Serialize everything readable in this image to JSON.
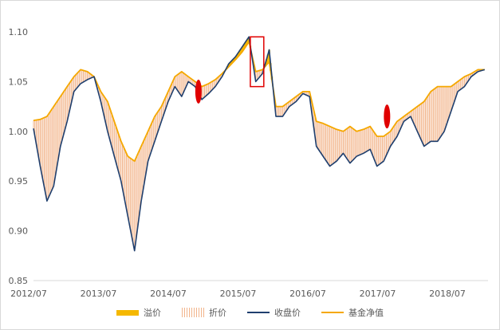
{
  "chart_data": {
    "type": "line",
    "title": "",
    "xlabel": "",
    "ylabel": "",
    "ylim": [
      0.85,
      1.1
    ],
    "yticks": [
      "0.85",
      "0.90",
      "0.95",
      "1.00",
      "1.05",
      "1.10"
    ],
    "xticks": [
      "2012/07",
      "2013/07",
      "2014/07",
      "2015/07",
      "2016/07",
      "2017/07",
      "2018/07"
    ],
    "xrange": [
      2012.5,
      2019.25
    ],
    "x": [
      2012.5,
      2012.6,
      2012.7,
      2012.8,
      2012.9,
      2013.0,
      2013.1,
      2013.2,
      2013.3,
      2013.4,
      2013.5,
      2013.6,
      2013.7,
      2013.8,
      2013.9,
      2014.0,
      2014.1,
      2014.2,
      2014.3,
      2014.4,
      2014.5,
      2014.6,
      2014.7,
      2014.8,
      2014.9,
      2015.0,
      2015.1,
      2015.2,
      2015.3,
      2015.4,
      2015.5,
      2015.6,
      2015.7,
      2015.8,
      2015.9,
      2016.0,
      2016.1,
      2016.2,
      2016.3,
      2016.4,
      2016.5,
      2016.6,
      2016.7,
      2016.8,
      2016.9,
      2017.0,
      2017.1,
      2017.2,
      2017.3,
      2017.4,
      2017.5,
      2017.6,
      2017.7,
      2017.8,
      2017.9,
      2018.0,
      2018.1,
      2018.2,
      2018.3,
      2018.4,
      2018.5,
      2018.6,
      2018.7,
      2018.8,
      2018.9,
      2019.0,
      2019.1,
      2019.2
    ],
    "series": [
      {
        "name": "收盘价",
        "color": "#1f3f6e",
        "values": [
          1.003,
          0.965,
          0.93,
          0.945,
          0.985,
          1.01,
          1.04,
          1.048,
          1.052,
          1.055,
          1.03,
          1.0,
          0.975,
          0.95,
          0.915,
          0.88,
          0.93,
          0.97,
          0.99,
          1.01,
          1.03,
          1.045,
          1.035,
          1.05,
          1.045,
          1.032,
          1.038,
          1.045,
          1.055,
          1.068,
          1.075,
          1.085,
          1.095,
          1.05,
          1.058,
          1.082,
          1.015,
          1.015,
          1.025,
          1.03,
          1.038,
          1.035,
          0.985,
          0.975,
          0.965,
          0.97,
          0.978,
          0.968,
          0.975,
          0.978,
          0.982,
          0.965,
          0.97,
          0.985,
          0.995,
          1.01,
          1.015,
          1.0,
          0.985,
          0.99,
          0.99,
          1.0,
          1.02,
          1.04,
          1.045,
          1.055,
          1.06,
          1.062
        ]
      },
      {
        "name": "基金净值",
        "color": "#f5a800",
        "values": [
          1.011,
          1.012,
          1.015,
          1.025,
          1.035,
          1.045,
          1.055,
          1.062,
          1.06,
          1.055,
          1.04,
          1.03,
          1.01,
          0.99,
          0.975,
          0.97,
          0.985,
          1.0,
          1.015,
          1.025,
          1.04,
          1.055,
          1.06,
          1.055,
          1.05,
          1.045,
          1.048,
          1.052,
          1.058,
          1.065,
          1.072,
          1.08,
          1.09,
          1.06,
          1.062,
          1.07,
          1.025,
          1.025,
          1.03,
          1.035,
          1.04,
          1.04,
          1.01,
          1.008,
          1.005,
          1.002,
          1.0,
          1.005,
          1.0,
          1.002,
          1.005,
          0.995,
          0.995,
          1.0,
          1.01,
          1.015,
          1.02,
          1.025,
          1.03,
          1.04,
          1.045,
          1.045,
          1.045,
          1.05,
          1.055,
          1.058,
          1.062,
          1.062
        ]
      }
    ],
    "legend": [
      {
        "label": "溢价",
        "style": "fill",
        "color": "#f5b800"
      },
      {
        "label": "折价",
        "style": "stripes",
        "color": "#f2b48a"
      },
      {
        "label": "收盘价",
        "style": "line",
        "color": "#1f3f6e"
      },
      {
        "label": "基金净值",
        "style": "line",
        "color": "#f5a800"
      }
    ],
    "legend_position": "bottom",
    "grid": false,
    "annotations": [
      {
        "shape": "red-ellipse",
        "x": 2014.95,
        "y": 1.04,
        "color": "#e00000"
      },
      {
        "shape": "red-rectangle",
        "x_from": 2015.72,
        "x_to": 2015.92,
        "y_from": 1.045,
        "y_to": 1.095,
        "color": "#e00000"
      },
      {
        "shape": "red-ellipse",
        "x": 2017.75,
        "y": 1.015,
        "color": "#e00000"
      }
    ]
  }
}
